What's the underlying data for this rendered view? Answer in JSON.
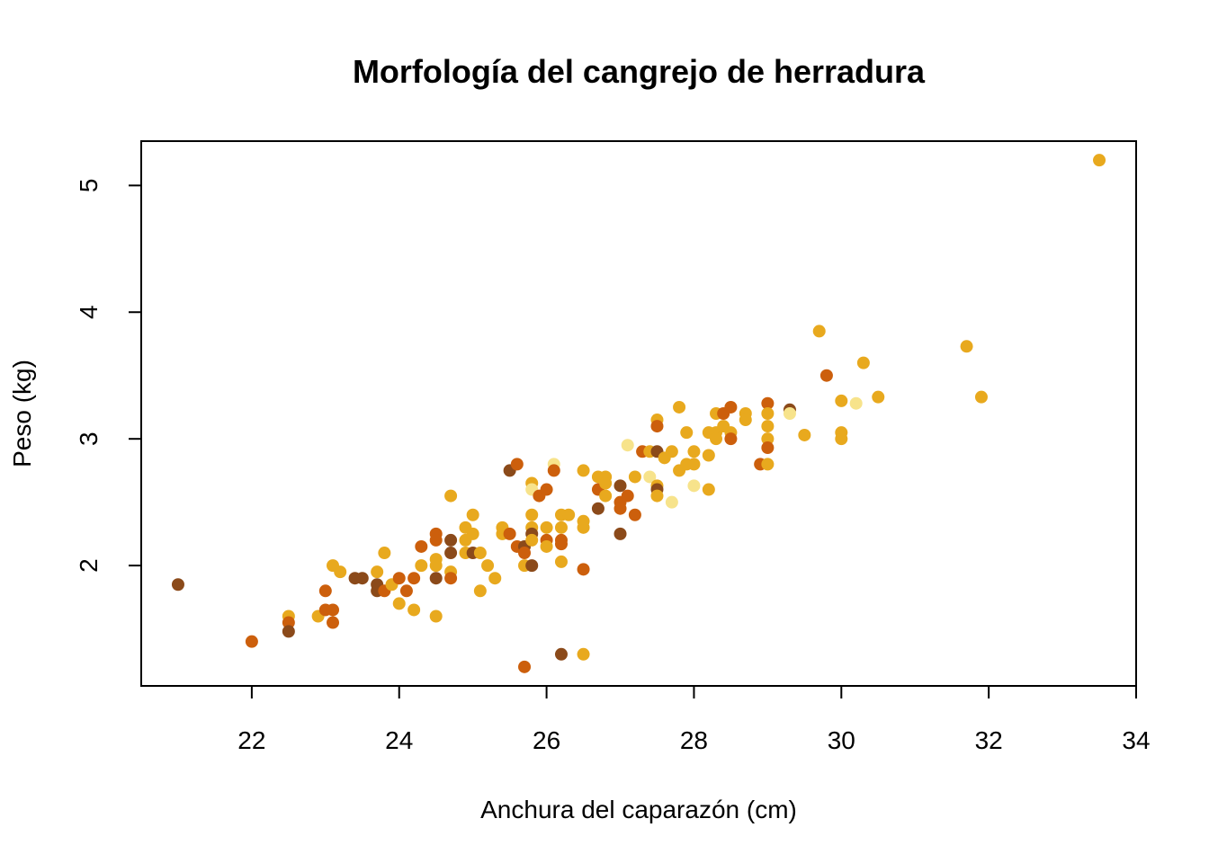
{
  "chart_data": {
    "type": "scatter",
    "title": "Morfología del cangrejo de herradura",
    "xlabel": "Anchura del caparazón (cm)",
    "ylabel": "Peso (kg)",
    "xlim": [
      20.5,
      34
    ],
    "ylim": [
      1.05,
      5.35
    ],
    "x_ticks": [
      22,
      24,
      26,
      28,
      30,
      32,
      34
    ],
    "y_ticks": [
      2,
      3,
      4,
      5
    ],
    "grid": false,
    "legend": "none",
    "palette": {
      "light": "#F7E38B",
      "medium": "#E8A91E",
      "dark": "#CC5F0C",
      "darker": "#8B4A1A"
    },
    "points": [
      {
        "x": 21.0,
        "y": 1.85,
        "color": "darker"
      },
      {
        "x": 22.0,
        "y": 1.4,
        "color": "dark"
      },
      {
        "x": 22.5,
        "y": 1.6,
        "color": "medium"
      },
      {
        "x": 22.5,
        "y": 1.55,
        "color": "dark"
      },
      {
        "x": 22.5,
        "y": 1.48,
        "color": "darker"
      },
      {
        "x": 22.9,
        "y": 1.6,
        "color": "medium"
      },
      {
        "x": 23.0,
        "y": 1.8,
        "color": "dark"
      },
      {
        "x": 23.0,
        "y": 1.65,
        "color": "dark"
      },
      {
        "x": 23.1,
        "y": 2.0,
        "color": "medium"
      },
      {
        "x": 23.1,
        "y": 1.65,
        "color": "dark"
      },
      {
        "x": 23.1,
        "y": 1.55,
        "color": "dark"
      },
      {
        "x": 23.2,
        "y": 1.95,
        "color": "medium"
      },
      {
        "x": 23.4,
        "y": 1.9,
        "color": "darker"
      },
      {
        "x": 23.5,
        "y": 1.9,
        "color": "darker"
      },
      {
        "x": 23.7,
        "y": 1.95,
        "color": "medium"
      },
      {
        "x": 23.7,
        "y": 1.85,
        "color": "darker"
      },
      {
        "x": 23.7,
        "y": 1.8,
        "color": "darker"
      },
      {
        "x": 23.8,
        "y": 2.1,
        "color": "medium"
      },
      {
        "x": 23.8,
        "y": 1.8,
        "color": "dark"
      },
      {
        "x": 23.9,
        "y": 1.85,
        "color": "medium"
      },
      {
        "x": 24.0,
        "y": 1.9,
        "color": "dark"
      },
      {
        "x": 24.0,
        "y": 1.7,
        "color": "medium"
      },
      {
        "x": 24.1,
        "y": 1.8,
        "color": "dark"
      },
      {
        "x": 24.2,
        "y": 1.9,
        "color": "dark"
      },
      {
        "x": 24.2,
        "y": 1.65,
        "color": "medium"
      },
      {
        "x": 24.3,
        "y": 2.15,
        "color": "dark"
      },
      {
        "x": 24.3,
        "y": 2.0,
        "color": "medium"
      },
      {
        "x": 24.5,
        "y": 2.25,
        "color": "dark"
      },
      {
        "x": 24.5,
        "y": 2.2,
        "color": "dark"
      },
      {
        "x": 24.5,
        "y": 2.05,
        "color": "medium"
      },
      {
        "x": 24.5,
        "y": 2.0,
        "color": "medium"
      },
      {
        "x": 24.5,
        "y": 1.9,
        "color": "darker"
      },
      {
        "x": 24.5,
        "y": 1.6,
        "color": "medium"
      },
      {
        "x": 24.7,
        "y": 2.55,
        "color": "medium"
      },
      {
        "x": 24.7,
        "y": 2.2,
        "color": "darker"
      },
      {
        "x": 24.7,
        "y": 2.1,
        "color": "darker"
      },
      {
        "x": 24.7,
        "y": 1.95,
        "color": "medium"
      },
      {
        "x": 24.7,
        "y": 1.9,
        "color": "dark"
      },
      {
        "x": 24.9,
        "y": 2.3,
        "color": "medium"
      },
      {
        "x": 24.9,
        "y": 2.2,
        "color": "medium"
      },
      {
        "x": 24.9,
        "y": 2.1,
        "color": "medium"
      },
      {
        "x": 25.0,
        "y": 2.4,
        "color": "medium"
      },
      {
        "x": 25.0,
        "y": 2.25,
        "color": "medium"
      },
      {
        "x": 25.0,
        "y": 2.1,
        "color": "darker"
      },
      {
        "x": 25.1,
        "y": 1.8,
        "color": "medium"
      },
      {
        "x": 25.1,
        "y": 2.1,
        "color": "medium"
      },
      {
        "x": 25.2,
        "y": 2.0,
        "color": "medium"
      },
      {
        "x": 25.3,
        "y": 1.9,
        "color": "medium"
      },
      {
        "x": 25.4,
        "y": 2.3,
        "color": "medium"
      },
      {
        "x": 25.4,
        "y": 2.25,
        "color": "medium"
      },
      {
        "x": 25.5,
        "y": 2.75,
        "color": "darker"
      },
      {
        "x": 25.5,
        "y": 2.25,
        "color": "dark"
      },
      {
        "x": 25.6,
        "y": 2.8,
        "color": "dark"
      },
      {
        "x": 25.6,
        "y": 2.15,
        "color": "dark"
      },
      {
        "x": 25.7,
        "y": 2.15,
        "color": "darker"
      },
      {
        "x": 25.7,
        "y": 2.1,
        "color": "dark"
      },
      {
        "x": 25.7,
        "y": 2.0,
        "color": "medium"
      },
      {
        "x": 25.7,
        "y": 1.2,
        "color": "dark"
      },
      {
        "x": 25.8,
        "y": 2.65,
        "color": "medium"
      },
      {
        "x": 25.8,
        "y": 2.6,
        "color": "light"
      },
      {
        "x": 25.8,
        "y": 2.4,
        "color": "medium"
      },
      {
        "x": 25.8,
        "y": 2.3,
        "color": "medium"
      },
      {
        "x": 25.8,
        "y": 2.25,
        "color": "darker"
      },
      {
        "x": 25.8,
        "y": 2.2,
        "color": "medium"
      },
      {
        "x": 25.8,
        "y": 2.0,
        "color": "darker"
      },
      {
        "x": 25.9,
        "y": 2.55,
        "color": "dark"
      },
      {
        "x": 26.0,
        "y": 2.6,
        "color": "dark"
      },
      {
        "x": 26.0,
        "y": 2.3,
        "color": "medium"
      },
      {
        "x": 26.0,
        "y": 2.2,
        "color": "dark"
      },
      {
        "x": 26.0,
        "y": 2.15,
        "color": "medium"
      },
      {
        "x": 26.1,
        "y": 2.8,
        "color": "light"
      },
      {
        "x": 26.1,
        "y": 2.75,
        "color": "dark"
      },
      {
        "x": 26.2,
        "y": 2.4,
        "color": "medium"
      },
      {
        "x": 26.2,
        "y": 2.3,
        "color": "medium"
      },
      {
        "x": 26.2,
        "y": 2.2,
        "color": "dark"
      },
      {
        "x": 26.2,
        "y": 2.17,
        "color": "dark"
      },
      {
        "x": 26.2,
        "y": 2.03,
        "color": "medium"
      },
      {
        "x": 26.2,
        "y": 1.3,
        "color": "darker"
      },
      {
        "x": 26.3,
        "y": 2.4,
        "color": "medium"
      },
      {
        "x": 26.5,
        "y": 2.75,
        "color": "medium"
      },
      {
        "x": 26.5,
        "y": 2.35,
        "color": "medium"
      },
      {
        "x": 26.5,
        "y": 2.3,
        "color": "medium"
      },
      {
        "x": 26.5,
        "y": 1.97,
        "color": "dark"
      },
      {
        "x": 26.5,
        "y": 1.3,
        "color": "medium"
      },
      {
        "x": 26.7,
        "y": 2.7,
        "color": "medium"
      },
      {
        "x": 26.7,
        "y": 2.6,
        "color": "dark"
      },
      {
        "x": 26.7,
        "y": 2.45,
        "color": "darker"
      },
      {
        "x": 26.8,
        "y": 2.7,
        "color": "medium"
      },
      {
        "x": 26.8,
        "y": 2.65,
        "color": "medium"
      },
      {
        "x": 26.8,
        "y": 2.55,
        "color": "medium"
      },
      {
        "x": 27.0,
        "y": 2.63,
        "color": "darker"
      },
      {
        "x": 27.0,
        "y": 2.5,
        "color": "dark"
      },
      {
        "x": 27.0,
        "y": 2.45,
        "color": "dark"
      },
      {
        "x": 27.0,
        "y": 2.25,
        "color": "darker"
      },
      {
        "x": 27.1,
        "y": 2.95,
        "color": "light"
      },
      {
        "x": 27.1,
        "y": 2.55,
        "color": "dark"
      },
      {
        "x": 27.2,
        "y": 2.7,
        "color": "medium"
      },
      {
        "x": 27.2,
        "y": 2.4,
        "color": "dark"
      },
      {
        "x": 27.3,
        "y": 2.9,
        "color": "dark"
      },
      {
        "x": 27.4,
        "y": 2.9,
        "color": "medium"
      },
      {
        "x": 27.4,
        "y": 2.7,
        "color": "light"
      },
      {
        "x": 27.5,
        "y": 3.15,
        "color": "medium"
      },
      {
        "x": 27.5,
        "y": 3.1,
        "color": "dark"
      },
      {
        "x": 27.5,
        "y": 2.9,
        "color": "darker"
      },
      {
        "x": 27.5,
        "y": 2.63,
        "color": "medium"
      },
      {
        "x": 27.5,
        "y": 2.6,
        "color": "darker"
      },
      {
        "x": 27.5,
        "y": 2.55,
        "color": "medium"
      },
      {
        "x": 27.6,
        "y": 2.85,
        "color": "medium"
      },
      {
        "x": 27.7,
        "y": 2.9,
        "color": "medium"
      },
      {
        "x": 27.7,
        "y": 2.5,
        "color": "light"
      },
      {
        "x": 27.8,
        "y": 3.25,
        "color": "medium"
      },
      {
        "x": 27.8,
        "y": 2.75,
        "color": "medium"
      },
      {
        "x": 27.9,
        "y": 3.05,
        "color": "medium"
      },
      {
        "x": 27.9,
        "y": 2.8,
        "color": "medium"
      },
      {
        "x": 28.0,
        "y": 2.9,
        "color": "medium"
      },
      {
        "x": 28.0,
        "y": 2.8,
        "color": "medium"
      },
      {
        "x": 28.0,
        "y": 2.63,
        "color": "light"
      },
      {
        "x": 28.2,
        "y": 3.05,
        "color": "medium"
      },
      {
        "x": 28.2,
        "y": 2.87,
        "color": "medium"
      },
      {
        "x": 28.2,
        "y": 2.6,
        "color": "medium"
      },
      {
        "x": 28.3,
        "y": 3.2,
        "color": "medium"
      },
      {
        "x": 28.3,
        "y": 3.05,
        "color": "medium"
      },
      {
        "x": 28.3,
        "y": 3.0,
        "color": "medium"
      },
      {
        "x": 28.4,
        "y": 3.2,
        "color": "dark"
      },
      {
        "x": 28.4,
        "y": 3.1,
        "color": "medium"
      },
      {
        "x": 28.5,
        "y": 3.25,
        "color": "dark"
      },
      {
        "x": 28.5,
        "y": 3.05,
        "color": "medium"
      },
      {
        "x": 28.5,
        "y": 3.0,
        "color": "dark"
      },
      {
        "x": 28.7,
        "y": 3.2,
        "color": "medium"
      },
      {
        "x": 28.7,
        "y": 3.15,
        "color": "medium"
      },
      {
        "x": 28.9,
        "y": 2.8,
        "color": "dark"
      },
      {
        "x": 29.0,
        "y": 3.28,
        "color": "dark"
      },
      {
        "x": 29.0,
        "y": 3.2,
        "color": "medium"
      },
      {
        "x": 29.0,
        "y": 3.1,
        "color": "medium"
      },
      {
        "x": 29.0,
        "y": 3.0,
        "color": "medium"
      },
      {
        "x": 29.0,
        "y": 2.93,
        "color": "dark"
      },
      {
        "x": 29.0,
        "y": 2.8,
        "color": "medium"
      },
      {
        "x": 29.3,
        "y": 3.23,
        "color": "darker"
      },
      {
        "x": 29.3,
        "y": 3.2,
        "color": "light"
      },
      {
        "x": 29.5,
        "y": 3.03,
        "color": "medium"
      },
      {
        "x": 29.7,
        "y": 3.85,
        "color": "medium"
      },
      {
        "x": 29.8,
        "y": 3.5,
        "color": "dark"
      },
      {
        "x": 30.0,
        "y": 3.3,
        "color": "medium"
      },
      {
        "x": 30.0,
        "y": 3.05,
        "color": "medium"
      },
      {
        "x": 30.0,
        "y": 3.0,
        "color": "medium"
      },
      {
        "x": 30.2,
        "y": 3.28,
        "color": "light"
      },
      {
        "x": 30.3,
        "y": 3.6,
        "color": "medium"
      },
      {
        "x": 30.5,
        "y": 3.33,
        "color": "medium"
      },
      {
        "x": 31.7,
        "y": 3.73,
        "color": "medium"
      },
      {
        "x": 31.9,
        "y": 3.33,
        "color": "medium"
      },
      {
        "x": 33.5,
        "y": 5.2,
        "color": "medium"
      }
    ]
  }
}
